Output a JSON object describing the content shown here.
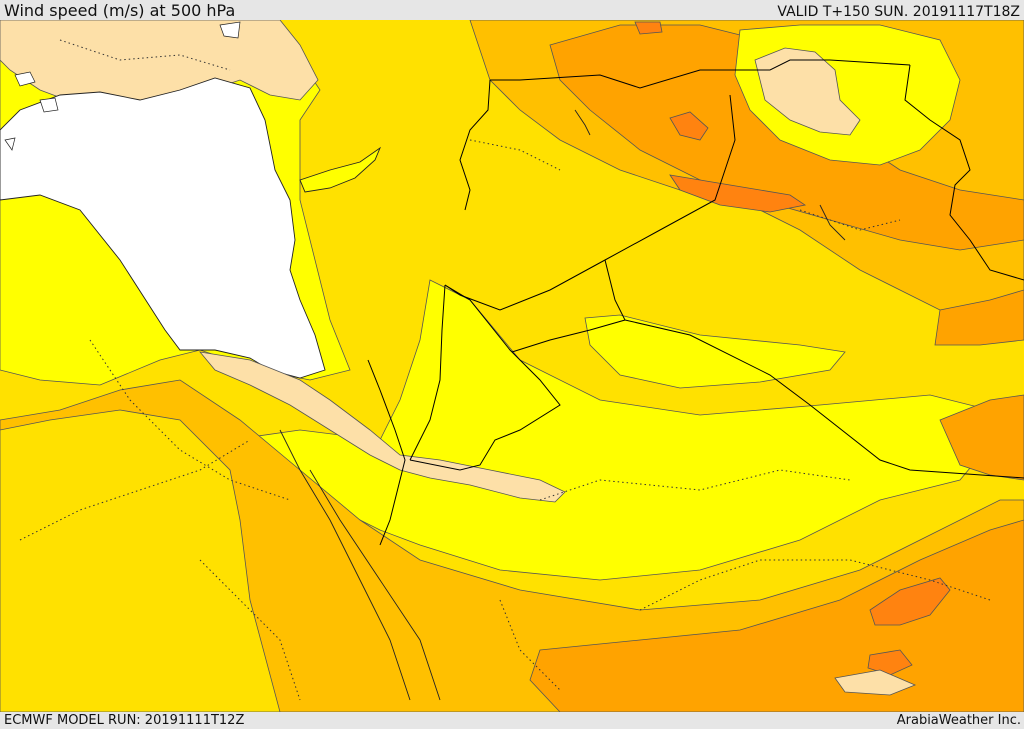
{
  "header": {
    "title": "Wind speed (m/s) at 500 hPa",
    "valid": "VALID T+150 SUN. 20191117T18Z"
  },
  "footer": {
    "model_run": "ECMWF MODEL RUN: 20191111T12Z",
    "credit": "ArabiaWeather Inc."
  },
  "colors": {
    "sea": "#ffffff",
    "very_light": "#fde0a8",
    "yellow": "#ffff00",
    "gold": "#ffe100",
    "amber": "#ffc000",
    "orange": "#ffa300",
    "dark_orange": "#ff8310",
    "contour": "#555555",
    "border": "#000000"
  }
}
